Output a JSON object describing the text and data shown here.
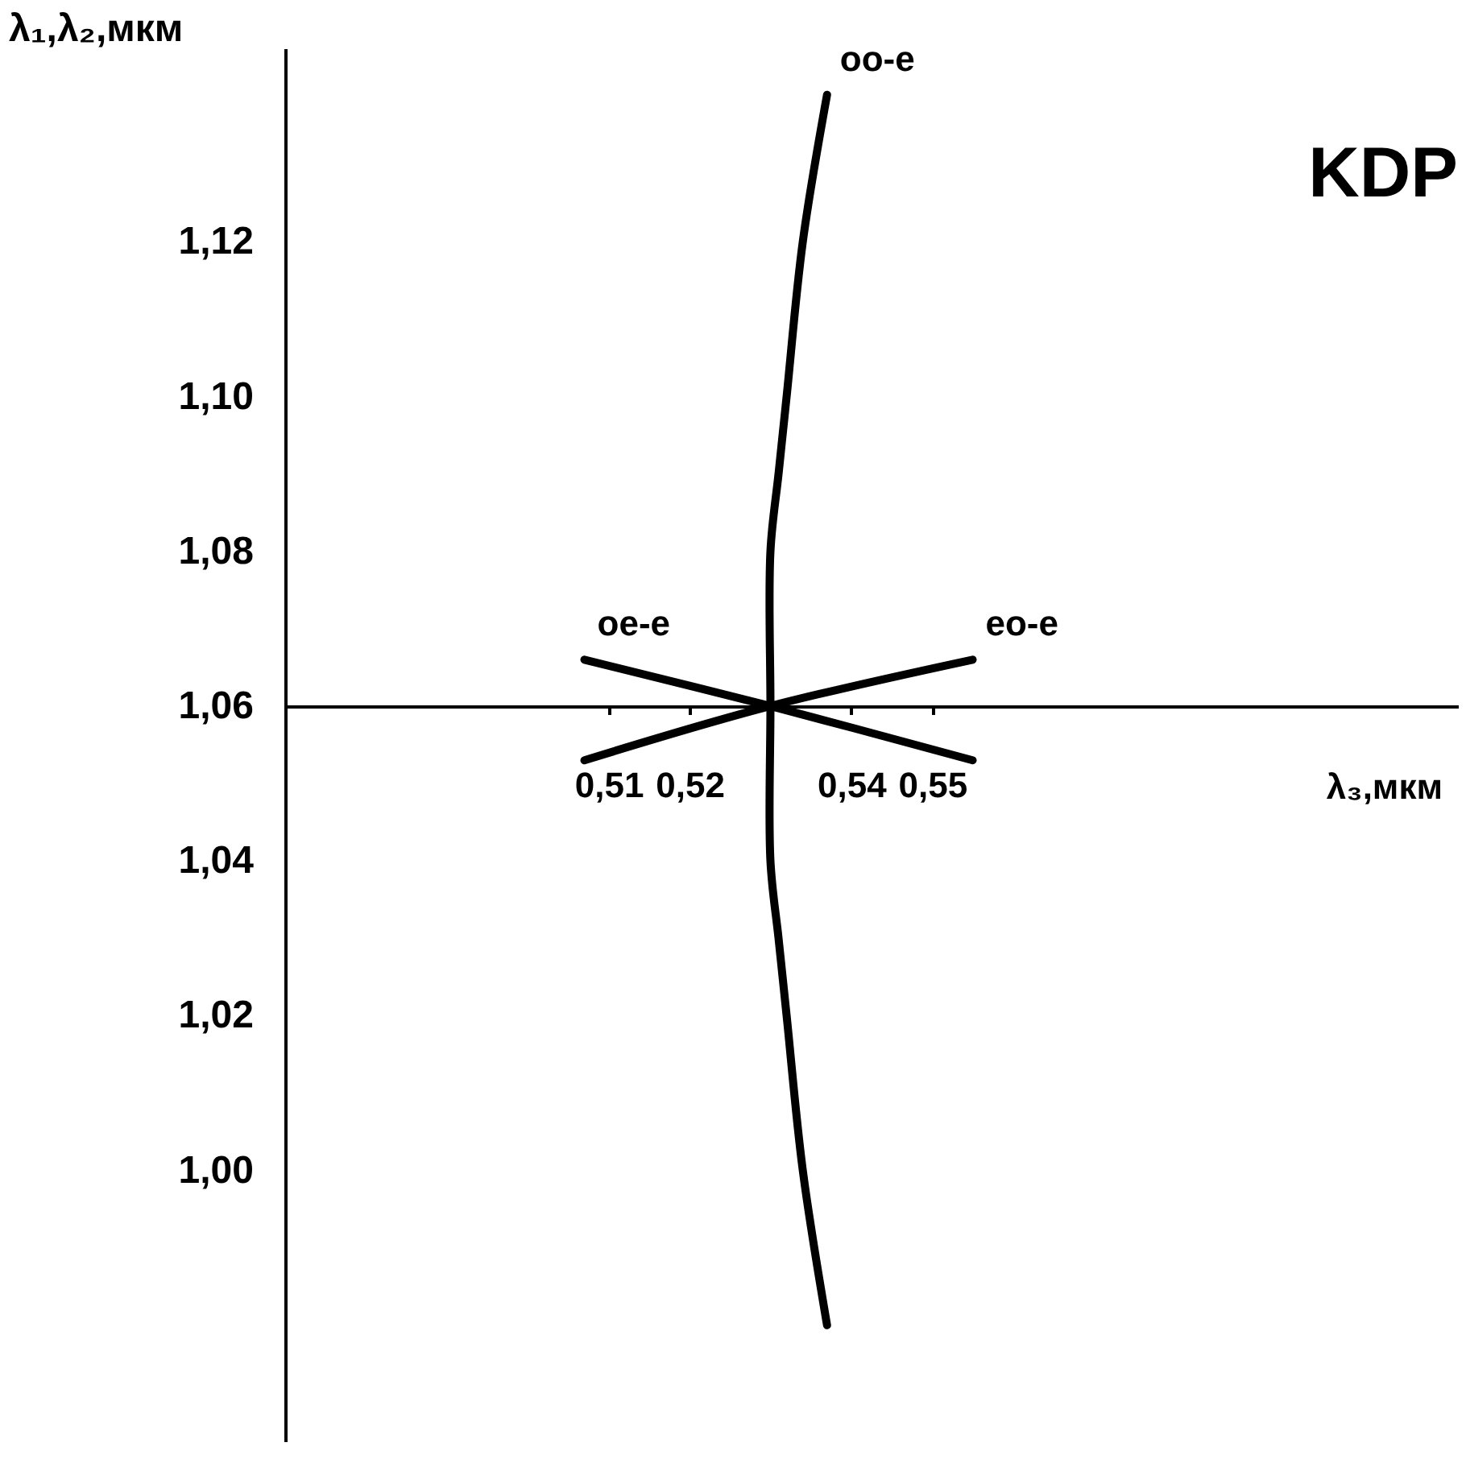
{
  "chart_data": {
    "type": "line",
    "title": "KDP",
    "xlabel": "λ₃,мкм",
    "ylabel": "λ₁,λ₂,мкм",
    "xlim": [
      0.47,
      0.615
    ],
    "ylim": [
      0.965,
      1.145
    ],
    "xticks": [
      {
        "value": 0.51,
        "label": "0,51"
      },
      {
        "value": 0.52,
        "label": "0,52"
      },
      {
        "value": 0.54,
        "label": "0,54"
      },
      {
        "value": 0.55,
        "label": "0,55"
      }
    ],
    "yticks": [
      {
        "value": 1.0,
        "label": "1,00"
      },
      {
        "value": 1.02,
        "label": "1,02"
      },
      {
        "value": 1.04,
        "label": "1,04"
      },
      {
        "value": 1.06,
        "label": "1,06"
      },
      {
        "value": 1.08,
        "label": "1,08"
      },
      {
        "value": 1.1,
        "label": "1,10"
      },
      {
        "value": 1.12,
        "label": "1,12"
      }
    ],
    "grid": false,
    "legend": false,
    "marker": "none",
    "line_style": "solid",
    "series": [
      {
        "name": "oo-e",
        "color": "#000000",
        "x": [
          0.537,
          0.534,
          0.532,
          0.531,
          0.53,
          0.53,
          0.53,
          0.531,
          0.532,
          0.534,
          0.537
        ],
        "values": [
          1.139,
          1.12,
          1.1,
          1.09,
          1.08,
          1.06,
          1.04,
          1.03,
          1.02,
          1.0,
          0.98
        ]
      },
      {
        "name": "oe-e",
        "color": "#000000",
        "x": [
          0.507,
          0.53,
          0.555
        ],
        "values": [
          1.066,
          1.06,
          1.053
        ]
      },
      {
        "name": "eo-e",
        "color": "#000000",
        "x": [
          0.507,
          0.53,
          0.555
        ],
        "values": [
          1.053,
          1.06,
          1.066
        ]
      }
    ]
  }
}
